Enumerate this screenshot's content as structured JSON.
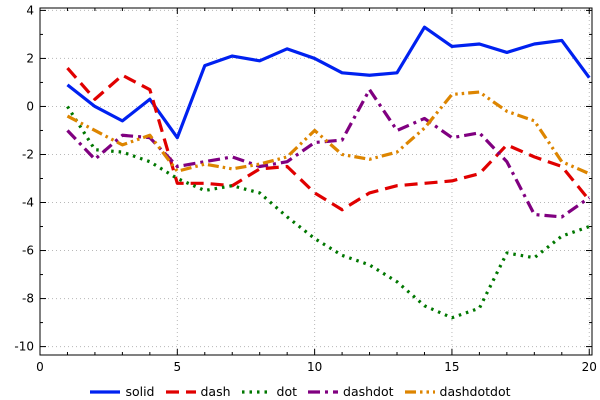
{
  "chart_data": {
    "type": "line",
    "title": "",
    "xlabel": "",
    "ylabel": "",
    "xlim": [
      0,
      20.1
    ],
    "ylim": [
      -10.35,
      4.1
    ],
    "x_major_ticks": [
      0,
      5,
      10,
      15,
      20
    ],
    "y_major_ticks": [
      -10,
      -8,
      -6,
      -4,
      -2,
      0,
      2,
      4
    ],
    "grid": true,
    "grid_color": "#b8b8b8",
    "axis_color": "#000000",
    "legend_position": "bottom",
    "x": [
      1,
      2,
      3,
      4,
      5,
      6,
      7,
      8,
      9,
      10,
      11,
      12,
      13,
      14,
      15,
      16,
      17,
      18,
      19,
      20
    ],
    "series": [
      {
        "name": "solid",
        "style": "solid",
        "color": "#0021f0",
        "values": [
          0.9,
          0.0,
          -0.6,
          0.3,
          -1.3,
          1.7,
          2.1,
          1.9,
          2.4,
          2.0,
          1.4,
          1.3,
          1.4,
          3.3,
          2.5,
          2.6,
          2.25,
          2.6,
          2.75,
          1.2
        ]
      },
      {
        "name": "dash",
        "style": "dash",
        "color": "#e00000",
        "values": [
          1.6,
          0.3,
          1.3,
          0.7,
          -3.2,
          -3.2,
          -3.3,
          -2.6,
          -2.5,
          -3.6,
          -4.3,
          -3.6,
          -3.3,
          -3.2,
          -3.1,
          -2.8,
          -1.6,
          -2.1,
          -2.5,
          -3.9
        ]
      },
      {
        "name": "dot",
        "style": "dot",
        "color": "#007700",
        "values": [
          0.0,
          -1.8,
          -1.9,
          -2.3,
          -3.0,
          -3.5,
          -3.3,
          -3.6,
          -4.6,
          -5.5,
          -6.2,
          -6.6,
          -7.3,
          -8.3,
          -8.8,
          -8.4,
          -6.1,
          -6.3,
          -5.4,
          -5.0
        ]
      },
      {
        "name": "dashdot",
        "style": "dashdot",
        "color": "#800080",
        "values": [
          -1.0,
          -2.2,
          -1.2,
          -1.3,
          -2.5,
          -2.3,
          -2.1,
          -2.5,
          -2.3,
          -1.5,
          -1.4,
          0.7,
          -1.0,
          -0.5,
          -1.3,
          -1.1,
          -2.3,
          -4.5,
          -4.6,
          -3.8
        ]
      },
      {
        "name": "dashdotdot",
        "style": "dashdotdot",
        "color": "#dd8500",
        "values": [
          -0.4,
          -1.0,
          -1.6,
          -1.2,
          -2.7,
          -2.4,
          -2.6,
          -2.4,
          -2.1,
          -1.0,
          -2.0,
          -2.2,
          -1.9,
          -0.9,
          0.5,
          0.6,
          -0.2,
          -0.6,
          -2.3,
          -2.8
        ]
      }
    ]
  }
}
